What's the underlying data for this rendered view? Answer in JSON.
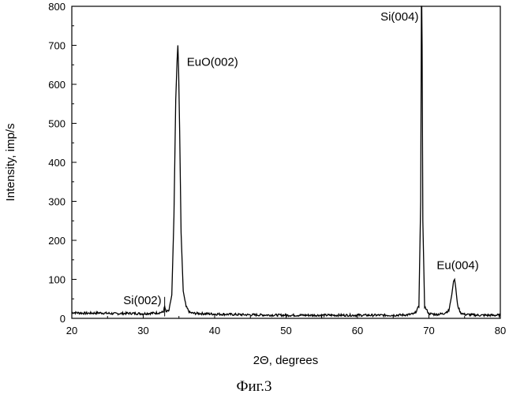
{
  "chart_data": {
    "type": "line",
    "xlabel": "2Θ, degrees",
    "ylabel": "Intensity, imp/s",
    "xlim": [
      20,
      80
    ],
    "ylim": [
      0,
      800
    ],
    "xticks": [
      "20",
      "30",
      "40",
      "50",
      "60",
      "70",
      "80"
    ],
    "yticks": [
      "0",
      "100",
      "200",
      "300",
      "400",
      "500",
      "600",
      "700",
      "800"
    ],
    "caption": "Фиг.3",
    "series": [
      {
        "x": [
          20,
          22,
          24,
          26,
          28,
          30,
          31,
          32,
          32.8,
          33.0,
          33.2,
          33.6,
          34.0,
          34.3,
          34.55,
          34.75,
          34.85,
          34.95,
          35.1,
          35.3,
          35.6,
          36.0,
          36.5,
          37,
          40,
          45,
          50,
          55,
          60,
          65,
          67,
          68,
          68.6,
          68.85,
          68.95,
          69.0,
          69.05,
          69.15,
          69.4,
          70,
          71,
          72,
          72.8,
          73.2,
          73.45,
          73.6,
          73.75,
          74.0,
          74.4,
          75,
          77,
          80
        ],
        "y": [
          15,
          13,
          14,
          12,
          13,
          12,
          13,
          14,
          16,
          30,
          16,
          20,
          60,
          260,
          560,
          665,
          700,
          640,
          480,
          220,
          70,
          30,
          15,
          13,
          11,
          9,
          8,
          8,
          8,
          8,
          9,
          12,
          30,
          300,
          800,
          820,
          700,
          250,
          30,
          12,
          10,
          12,
          20,
          60,
          95,
          100,
          80,
          35,
          15,
          10,
          8,
          8
        ]
      }
    ],
    "annotations": [
      {
        "text": "EuO(002)",
        "x": 35.0,
        "y": 700
      },
      {
        "text": "Si(004)",
        "x": 69.0,
        "y": 820
      },
      {
        "text": "Si(002)",
        "x": 33.0,
        "y": 30
      },
      {
        "text": "Eu(004)",
        "x": 73.6,
        "y": 100
      }
    ]
  }
}
